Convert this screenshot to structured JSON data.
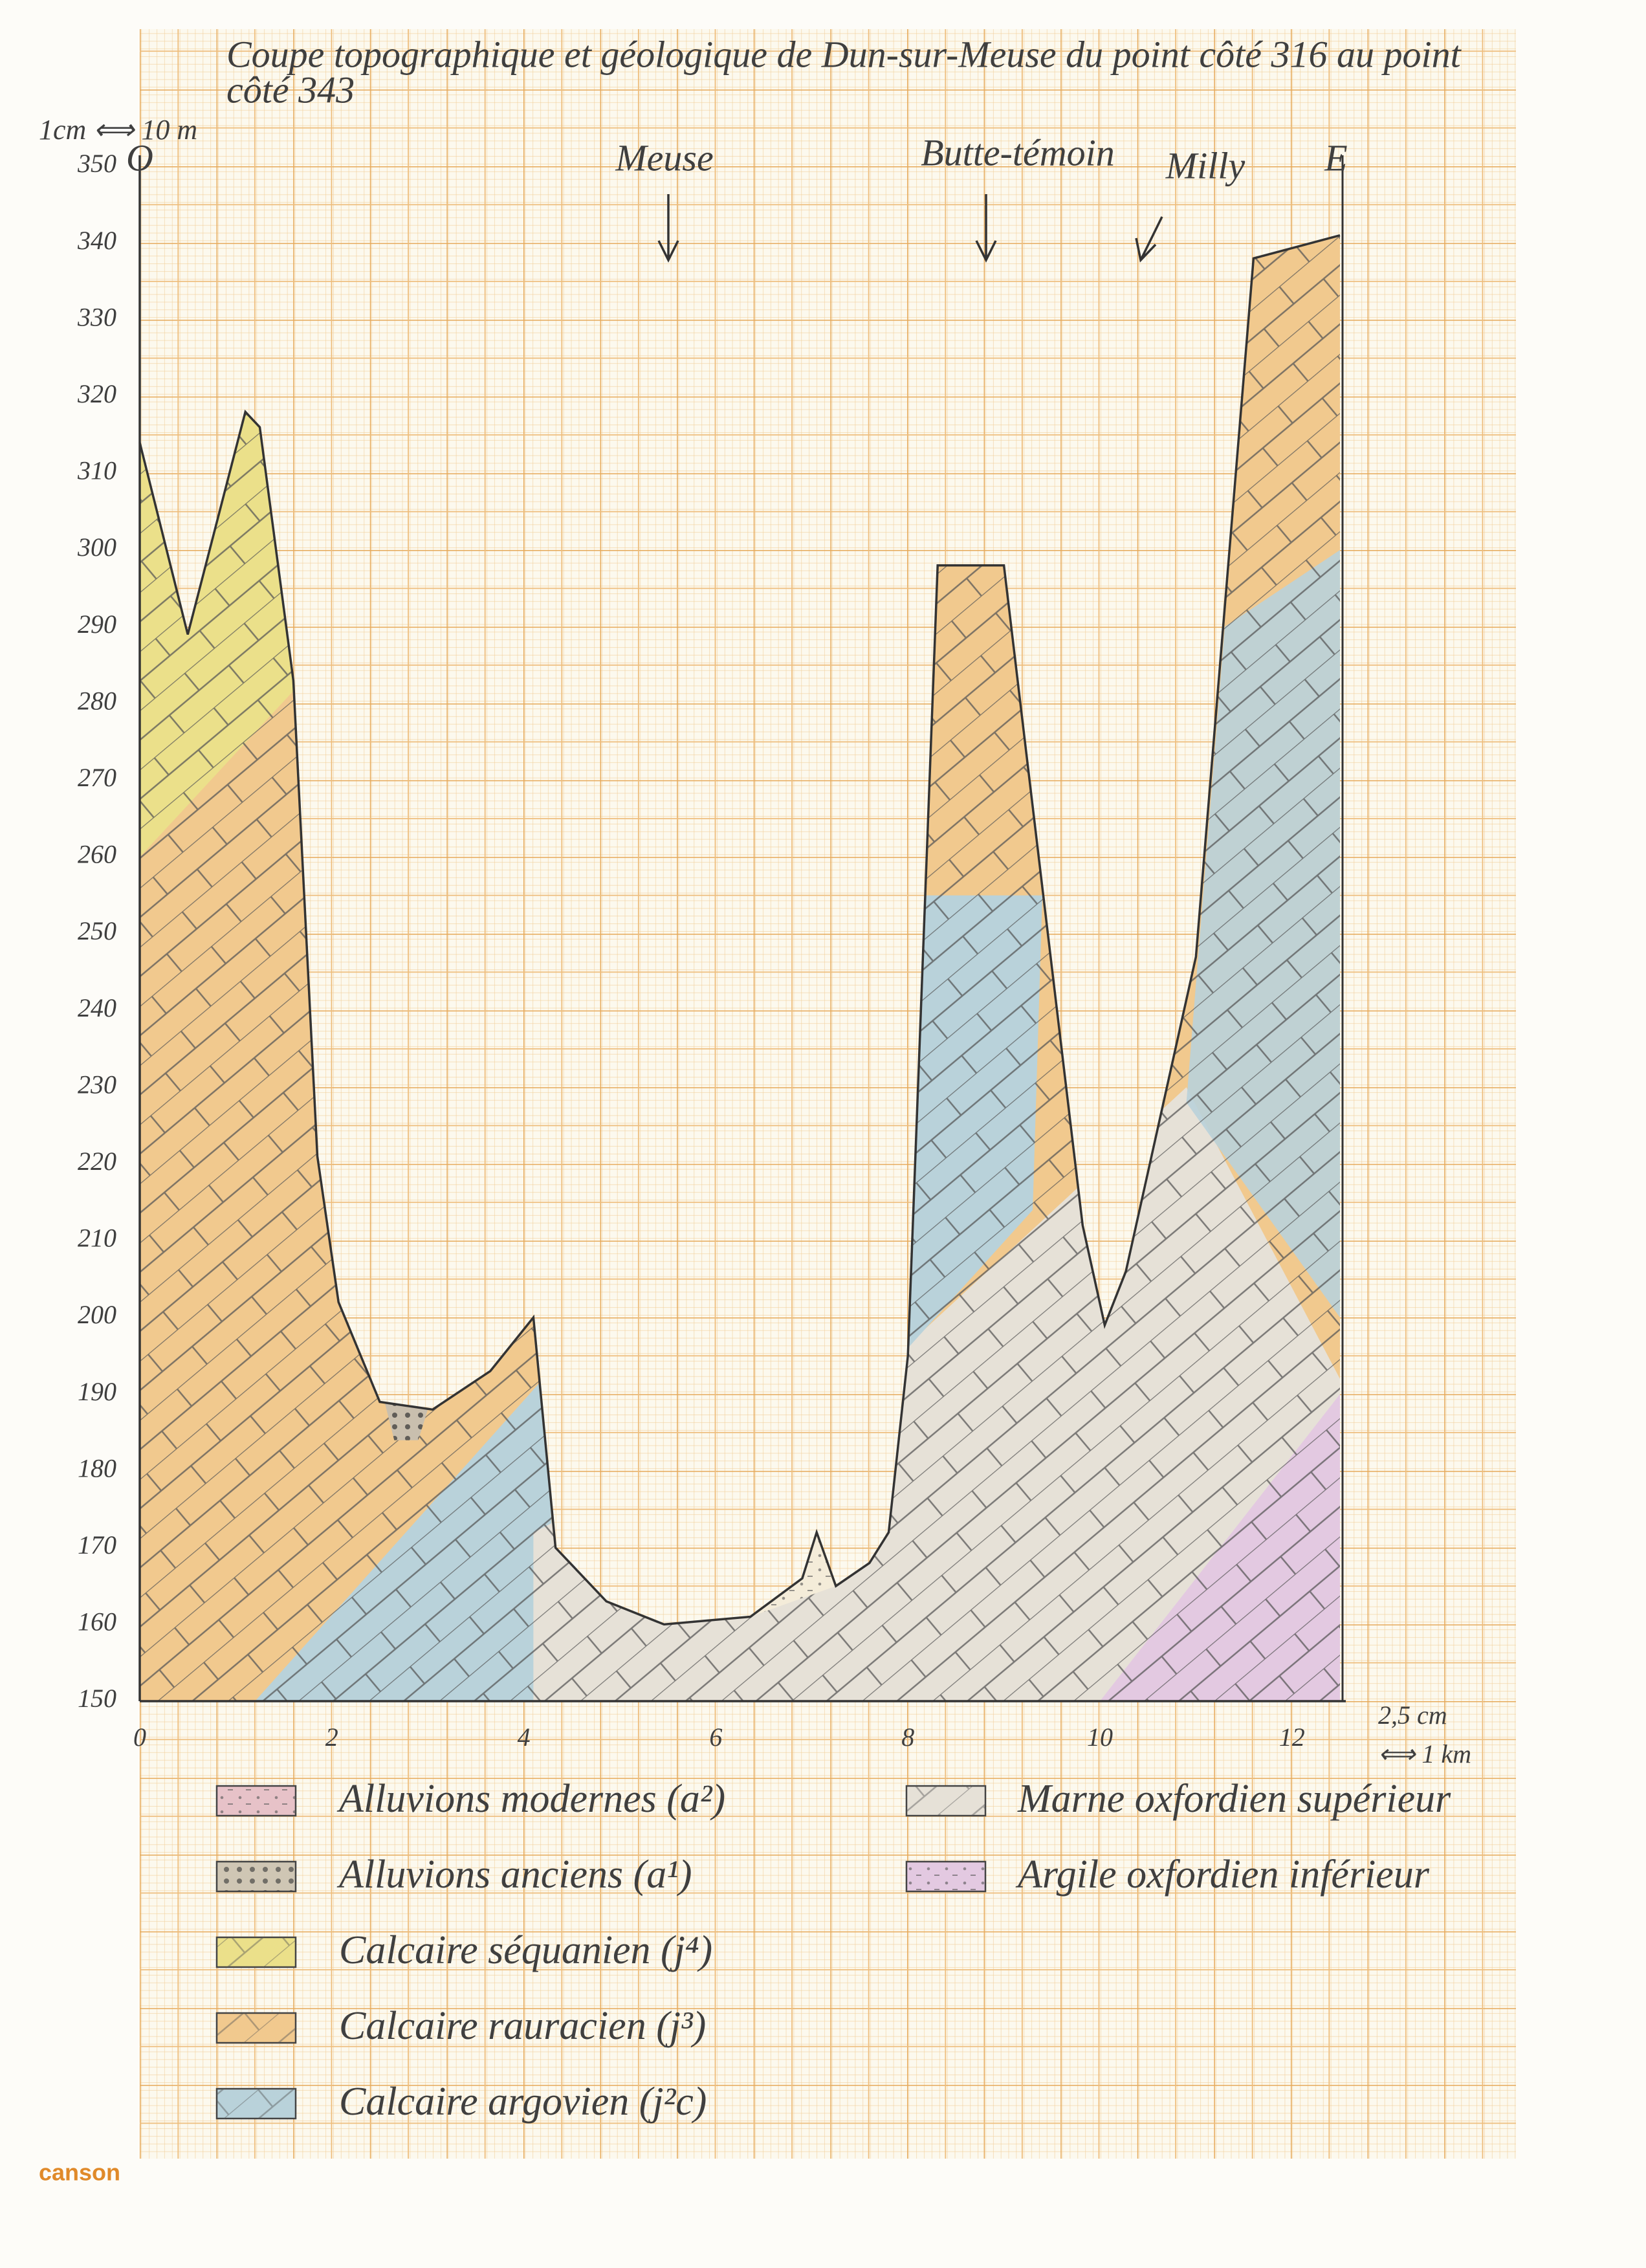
{
  "header": {
    "title_lines": [
      "Coupe topographique et géologique de Dun-sur-Meuse du point côté 316 au point",
      "côté 343"
    ],
    "scale": "1cm ⟺ 10 m"
  },
  "places": {
    "west": "O",
    "east": "E",
    "river": "Meuse",
    "hill": "Butte-témoin",
    "village": "Milly"
  },
  "y_axis": {
    "labels": [
      "350",
      "340",
      "330",
      "320",
      "310",
      "300",
      "290",
      "280",
      "270",
      "260",
      "250",
      "240",
      "230",
      "220",
      "210",
      "200",
      "190",
      "180",
      "170",
      "160",
      "150"
    ]
  },
  "x_axis": {
    "labels": [
      "0",
      "2",
      "4",
      "6",
      "8",
      "10",
      "12"
    ],
    "scale_lines": [
      "2,5 cm",
      "⟺ 1 km"
    ]
  },
  "legend": {
    "items": [
      "Alluvions modernes (a²)",
      "Alluvions anciens (a¹)",
      "Calcaire séquanien (j⁴)",
      "Calcaire rauracien (j³)",
      "Calcaire argovien (j²c)",
      "Marne oxfordien supérieur",
      "Argile oxfordien inférieur"
    ]
  },
  "brand": "canson"
}
